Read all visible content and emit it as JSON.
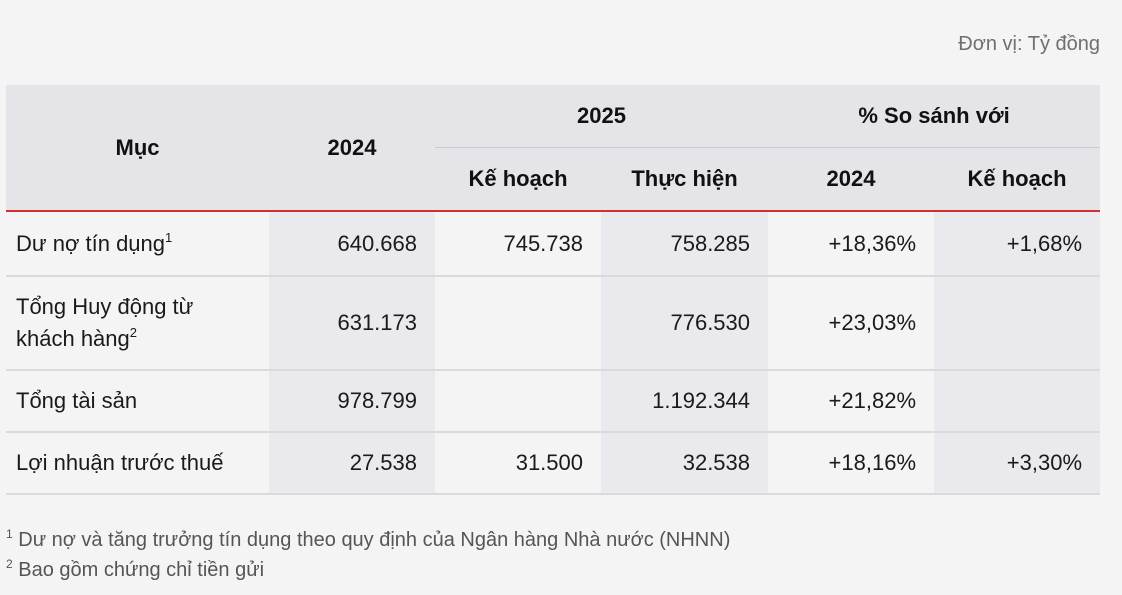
{
  "unit": "Đơn vị: Tỷ đồng",
  "header": {
    "muc": "Mục",
    "y2024": "2024",
    "y2025": "2025",
    "compare": "% So sánh với",
    "ke_hoach": "Kế hoạch",
    "thuc_hien": "Thực hiện",
    "cmp_2024": "2024",
    "cmp_ke_hoach": "Kế hoạch"
  },
  "rows": [
    {
      "label": "Dư nợ tín dụng",
      "sup": "1",
      "v2024": "640.668",
      "plan": "745.738",
      "actual": "758.285",
      "vs2024": "+18,36%",
      "vsplan": "+1,68%"
    },
    {
      "label_line1": "Tổng Huy động từ",
      "label_line2": "khách hàng",
      "sup": "2",
      "v2024": "631.173",
      "plan": "",
      "actual": "776.530",
      "vs2024": "+23,03%",
      "vsplan": ""
    },
    {
      "label": "Tổng tài sản",
      "v2024": "978.799",
      "plan": "",
      "actual": "1.192.344",
      "vs2024": "+21,82%",
      "vsplan": ""
    },
    {
      "label": "Lợi nhuận trước thuế",
      "v2024": "27.538",
      "plan": "31.500",
      "actual": "32.538",
      "vs2024": "+18,16%",
      "vsplan": "+3,30%"
    }
  ],
  "notes": [
    {
      "mark": "1",
      "text": " Dư nợ và tăng trưởng tín dụng theo quy định của Ngân hàng Nhà nước (NHNN)"
    },
    {
      "mark": "2",
      "text": " Bao gồm chứng chỉ tiền gửi"
    }
  ]
}
